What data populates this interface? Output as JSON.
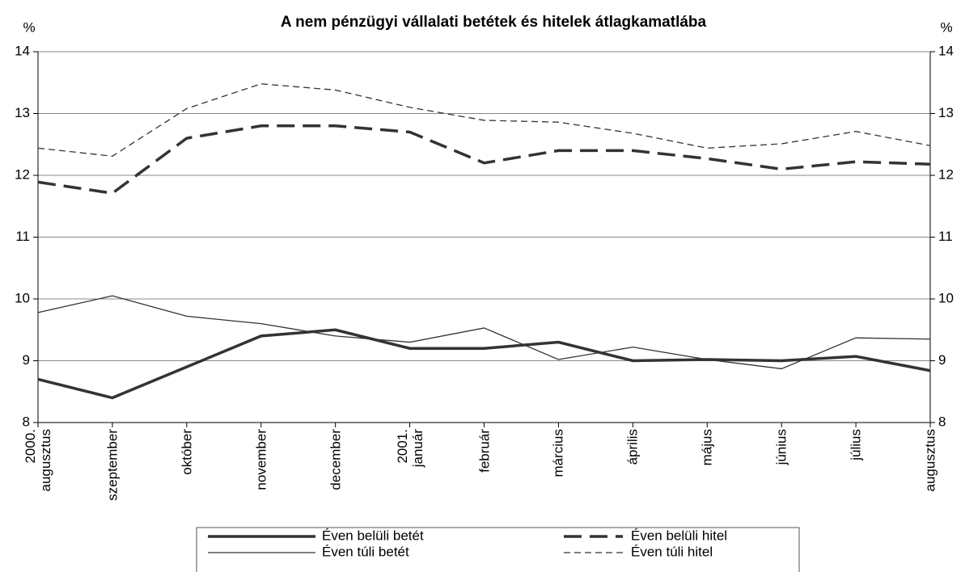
{
  "chart_data": {
    "type": "line",
    "title": "A nem pénzügyi vállalati betétek és hitelek átlagkamatlába",
    "y_label": "%",
    "y2_label": "%",
    "categories": [
      "2000.\naugusztus",
      "szeptember",
      "október",
      "november",
      "december",
      "2001.\njanuár",
      "február",
      "március",
      "április",
      "május",
      "június",
      "július",
      "augusztus"
    ],
    "ylim": [
      8,
      14
    ],
    "yticks": [
      8,
      9,
      10,
      11,
      12,
      13,
      14
    ],
    "y2lim": [
      8,
      14
    ],
    "y2ticks": [
      8,
      9,
      10,
      11,
      12,
      13,
      14
    ],
    "grid": true,
    "series": [
      {
        "name": "Éven belüli betét",
        "color": "#333333",
        "values": [
          8.7,
          8.4,
          8.9,
          9.4,
          9.5,
          9.2,
          9.2,
          9.3,
          9.0,
          9.02,
          9.0,
          9.07,
          8.84
        ]
      },
      {
        "name": "Éven belüli hitel",
        "color": "#333333",
        "values": [
          11.89,
          11.71,
          12.6,
          12.8,
          12.8,
          12.7,
          12.2,
          12.4,
          12.4,
          12.27,
          12.1,
          12.22,
          12.18
        ]
      },
      {
        "name": "Éven túli betét",
        "color": "#333333",
        "values": [
          9.78,
          10.05,
          9.72,
          9.6,
          9.4,
          9.3,
          9.53,
          9.02,
          9.22,
          9.02,
          8.87,
          9.37,
          9.35
        ]
      },
      {
        "name": "Éven túli hitel",
        "color": "#333333",
        "values": [
          12.44,
          12.31,
          13.08,
          13.48,
          13.38,
          13.1,
          12.89,
          12.86,
          12.68,
          12.44,
          12.51,
          12.71,
          12.48
        ]
      }
    ]
  }
}
